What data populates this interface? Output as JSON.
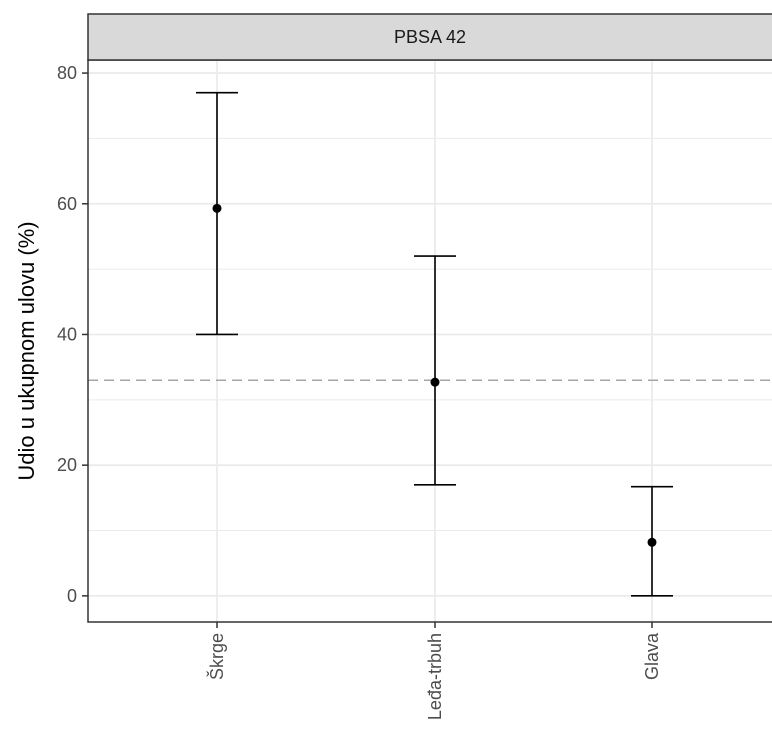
{
  "chart_data": {
    "type": "errorbar",
    "panel_title": "PBSA 42",
    "ylabel": "Udio u ukupnom ulovu (%)",
    "xlabel": "",
    "ylim": [
      -4,
      82
    ],
    "y_ticks": [
      "0",
      "20",
      "40",
      "60",
      "80"
    ],
    "y_minor_ticks": [
      10,
      30,
      50,
      70
    ],
    "reference_line": 33,
    "grid": true,
    "categories": [
      "Škrge",
      "Leđa-trbuh",
      "Glava"
    ],
    "points": [
      {
        "category": "Škrge",
        "value": 59.3,
        "lower": 40,
        "upper": 77
      },
      {
        "category": "Leđa-trbuh",
        "value": 32.7,
        "lower": 17,
        "upper": 52
      },
      {
        "category": "Glava",
        "value": 8.2,
        "lower": 0,
        "upper": 16.7
      }
    ],
    "colors": {
      "points": "#000000",
      "grid": "#ebebeb",
      "panel_border": "#333333",
      "strip_fill": "#d9d9d9",
      "reference_line": "#a6a6a6"
    }
  }
}
